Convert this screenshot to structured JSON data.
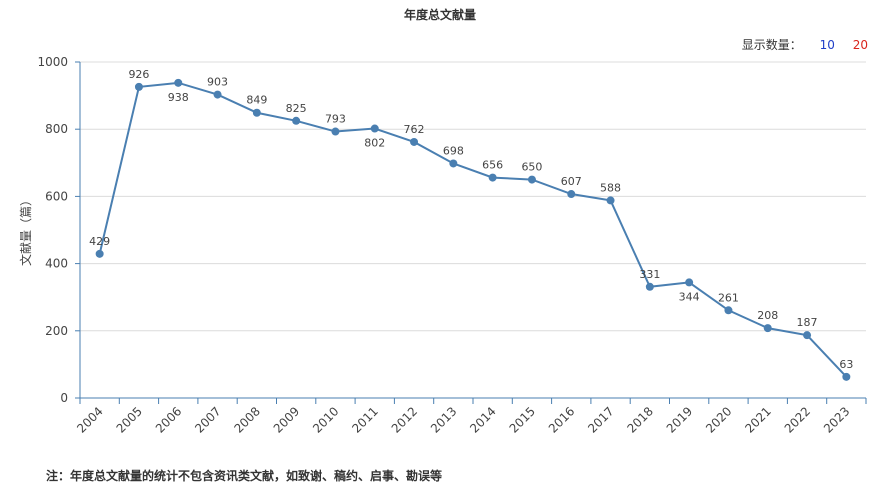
{
  "title": "年度总文献量",
  "controls": {
    "label": "显示数量：",
    "options": [
      "10",
      "20"
    ],
    "colors": {
      "opt10": "#1f3ec7",
      "opt20": "#d9251c"
    }
  },
  "note": "注：年度总文献量的统计不包含资讯类文献，如致谢、稿约、启事、勘误等",
  "chart_data": {
    "type": "line",
    "title": "年度总文献量",
    "xlabel": "",
    "ylabel": "文献量（篇）",
    "ylim": [
      0,
      1000
    ],
    "yticks": [
      0,
      200,
      400,
      600,
      800,
      1000
    ],
    "grid": true,
    "line_color": "#4a7fb1",
    "x": [
      "2004",
      "2005",
      "2006",
      "2007",
      "2008",
      "2009",
      "2010",
      "2011",
      "2012",
      "2013",
      "2014",
      "2015",
      "2016",
      "2017",
      "2018",
      "2019",
      "2020",
      "2021",
      "2022",
      "2023"
    ],
    "values": [
      429,
      926,
      938,
      903,
      849,
      825,
      793,
      802,
      762,
      698,
      656,
      650,
      607,
      588,
      331,
      344,
      261,
      208,
      187,
      63
    ]
  }
}
